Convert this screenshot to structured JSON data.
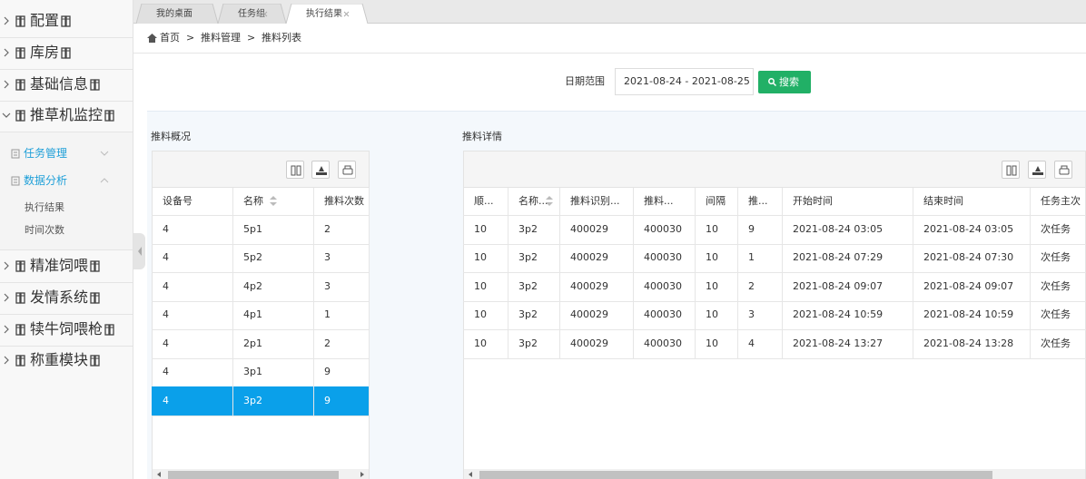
{
  "sidebar": {
    "menu": [
      {
        "label": "配置"
      },
      {
        "label": "库房"
      },
      {
        "label": "基础信息"
      },
      {
        "label": "推草机监控",
        "children": [
          {
            "label": "任务管理"
          },
          {
            "label": "数据分析",
            "children": [
              {
                "label": "执行结果"
              },
              {
                "label": "时间次数"
              }
            ]
          }
        ]
      },
      {
        "label": "精准饲喂"
      },
      {
        "label": "发情系统"
      },
      {
        "label": "犊牛饲喂枪"
      },
      {
        "label": "称重模块"
      }
    ]
  },
  "tabs": [
    "我的桌面",
    "任务组",
    "执行结果"
  ],
  "breadcrumb": {
    "items": [
      "首页",
      "推料管理",
      "推料列表"
    ],
    "separator": ">"
  },
  "filter": {
    "label": "日期范围",
    "value": "2021-08-24 - 2021-08-25",
    "button": "搜索"
  },
  "summary": {
    "title": "推料概况",
    "table": {
      "headers": [
        "设备号",
        "名称",
        "推料次数"
      ],
      "rows": [
        [
          "4",
          "5p1",
          "2"
        ],
        [
          "4",
          "5p2",
          "3"
        ],
        [
          "4",
          "4p2",
          "3"
        ],
        [
          "4",
          "4p1",
          "1"
        ],
        [
          "4",
          "2p1",
          "2"
        ],
        [
          "4",
          "3p1",
          "9"
        ],
        [
          "4",
          "3p2",
          "9"
        ]
      ]
    }
  },
  "detail": {
    "title": "推料详情",
    "table": {
      "headers": [
        "顺...",
        "名称...",
        "推料识别...",
        "推料...",
        "间隔",
        "推...",
        "开始时间",
        "结束时间",
        "任务主次"
      ],
      "rows": [
        [
          "10",
          "3p2",
          "400029",
          "400030",
          "10",
          "9",
          "2021-08-24 03:05",
          "2021-08-24 03:05",
          "次任务"
        ],
        [
          "10",
          "3p2",
          "400029",
          "400030",
          "10",
          "1",
          "2021-08-24 07:29",
          "2021-08-24 07:30",
          "次任务"
        ],
        [
          "10",
          "3p2",
          "400029",
          "400030",
          "10",
          "2",
          "2021-08-24 09:07",
          "2021-08-24 09:07",
          "次任务"
        ],
        [
          "10",
          "3p2",
          "400029",
          "400030",
          "10",
          "3",
          "2021-08-24 10:59",
          "2021-08-24 10:59",
          "次任务"
        ],
        [
          "10",
          "3p2",
          "400029",
          "400030",
          "10",
          "4",
          "2021-08-24 13:27",
          "2021-08-24 13:28",
          "次任务"
        ]
      ]
    }
  }
}
